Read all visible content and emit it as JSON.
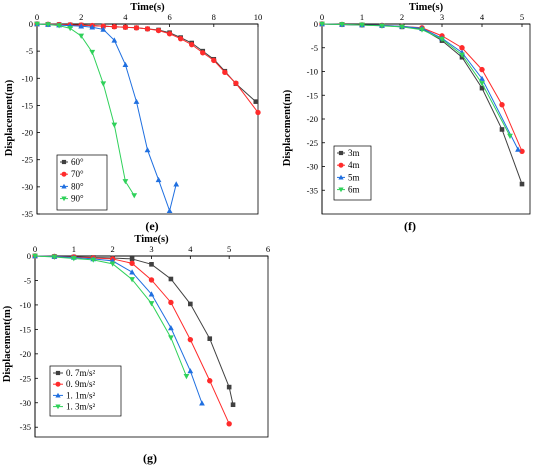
{
  "chart_data": [
    {
      "panel": "(e)",
      "type": "line",
      "xlabel": "Time(s)",
      "ylabel": "Displacement(m)",
      "xlim": [
        0,
        10
      ],
      "ylim": [
        -35,
        0
      ],
      "xticks": [
        0,
        2,
        4,
        6,
        8,
        10
      ],
      "yticks": [
        0,
        -5,
        -10,
        -15,
        -20,
        -25,
        -30,
        -35
      ],
      "legend_position": "lower-left",
      "series": [
        {
          "name": "60°",
          "color": "#404040",
          "marker": "square",
          "x": [
            0,
            0.5,
            1,
            1.5,
            2,
            2.5,
            3,
            3.5,
            4,
            4.5,
            5,
            5.5,
            6,
            6.5,
            7,
            7.5,
            8,
            8.5,
            9,
            9.9
          ],
          "y": [
            0,
            -0.05,
            -0.1,
            -0.15,
            -0.2,
            -0.3,
            -0.4,
            -0.5,
            -0.6,
            -0.7,
            -0.9,
            -1.1,
            -1.6,
            -2.5,
            -3.5,
            -5,
            -6.5,
            -8.7,
            -11,
            -14.3
          ]
        },
        {
          "name": "70°",
          "color": "#ff2b2b",
          "marker": "circle",
          "x": [
            0,
            0.5,
            1,
            1.5,
            2,
            2.5,
            3,
            3.5,
            4,
            4.5,
            5,
            5.5,
            6,
            6.5,
            7,
            7.5,
            8,
            8.5,
            9,
            10
          ],
          "y": [
            0,
            -0.05,
            -0.1,
            -0.15,
            -0.2,
            -0.3,
            -0.4,
            -0.5,
            -0.6,
            -0.7,
            -0.9,
            -1.2,
            -1.8,
            -2.7,
            -3.8,
            -5.3,
            -6.7,
            -8.9,
            -10.9,
            -16.3
          ]
        },
        {
          "name": "80°",
          "color": "#1f6fe0",
          "marker": "triangle-up",
          "x": [
            0,
            0.5,
            1,
            1.5,
            2,
            2.5,
            3,
            3.5,
            4,
            4.5,
            5,
            5.5,
            6,
            6.3
          ],
          "y": [
            0,
            -0.1,
            -0.2,
            -0.3,
            -0.4,
            -0.6,
            -1,
            -3,
            -7.5,
            -14.3,
            -23.2,
            -28.7,
            -34.4,
            -29.5
          ]
        },
        {
          "name": "90°",
          "color": "#2fd15a",
          "marker": "triangle-down",
          "x": [
            0,
            0.5,
            1,
            1.5,
            2,
            2.5,
            3,
            3.5,
            4,
            4.4
          ],
          "y": [
            0,
            -0.1,
            -0.3,
            -0.8,
            -2.2,
            -5.2,
            -11,
            -18.6,
            -29,
            -31.6
          ]
        }
      ]
    },
    {
      "panel": "(f)",
      "type": "line",
      "xlabel": "Time(s)",
      "ylabel": "Displacement(m)",
      "xlim": [
        0,
        5.2
      ],
      "ylim": [
        -40,
        0
      ],
      "xticks": [
        0,
        1,
        2,
        3,
        4,
        5
      ],
      "yticks": [
        0,
        -5,
        -10,
        -15,
        -20,
        -25,
        -30,
        -35
      ],
      "legend_position": "lower-left",
      "series": [
        {
          "name": "3m",
          "color": "#404040",
          "marker": "square",
          "x": [
            0,
            0.5,
            1,
            1.5,
            2,
            2.5,
            3,
            3.5,
            4,
            4.5,
            5
          ],
          "y": [
            0,
            -0.1,
            -0.2,
            -0.3,
            -0.6,
            -1,
            -3.5,
            -7,
            -13.5,
            -22.2,
            -33.7
          ]
        },
        {
          "name": "4m",
          "color": "#ff2b2b",
          "marker": "circle",
          "x": [
            0,
            0.5,
            1,
            1.5,
            2,
            2.5,
            3,
            3.5,
            4,
            4.5,
            5
          ],
          "y": [
            0,
            -0.1,
            -0.2,
            -0.3,
            -0.5,
            -0.8,
            -2.5,
            -5,
            -9.6,
            -17,
            -26.8
          ]
        },
        {
          "name": "5m",
          "color": "#1f6fe0",
          "marker": "triangle-up",
          "x": [
            0,
            0.5,
            1,
            1.5,
            2,
            2.5,
            3,
            3.5,
            4,
            4.9
          ],
          "y": [
            0,
            -0.1,
            -0.2,
            -0.3,
            -0.5,
            -0.9,
            -3,
            -6,
            -11.5,
            -26.4
          ]
        },
        {
          "name": "6m",
          "color": "#2fd15a",
          "marker": "triangle-down",
          "x": [
            0,
            0.5,
            1,
            1.5,
            2,
            2.5,
            3,
            3.5,
            4,
            4.7
          ],
          "y": [
            0,
            -0.1,
            -0.2,
            -0.4,
            -0.6,
            -1.2,
            -3.2,
            -6.5,
            -12.5,
            -23.6
          ]
        }
      ]
    },
    {
      "panel": "(g)",
      "type": "line",
      "xlabel": "Time(s)",
      "ylabel": "Displacement(m)",
      "xlim": [
        0,
        6
      ],
      "ylim": [
        -37,
        0
      ],
      "xticks": [
        0,
        1,
        2,
        3,
        4,
        5,
        6
      ],
      "yticks": [
        0,
        -5,
        -10,
        -15,
        -20,
        -25,
        -30,
        -35
      ],
      "legend_position": "lower-left",
      "series": [
        {
          "name": "0. 7m/s²",
          "color": "#404040",
          "marker": "square",
          "x": [
            0,
            0.5,
            1,
            1.5,
            2,
            2.5,
            3,
            3.5,
            4,
            4.5,
            5,
            5.1
          ],
          "y": [
            0,
            -0.1,
            -0.2,
            -0.3,
            -0.4,
            -0.6,
            -1.7,
            -4.7,
            -9.8,
            -16.9,
            -26.8,
            -30.4
          ]
        },
        {
          "name": "0. 9m/s²",
          "color": "#ff2b2b",
          "marker": "circle",
          "x": [
            0,
            0.5,
            1,
            1.5,
            2,
            2.5,
            3,
            3.5,
            4,
            4.5,
            5
          ],
          "y": [
            0,
            -0.1,
            -0.2,
            -0.4,
            -0.6,
            -1.5,
            -4.9,
            -9.5,
            -17.1,
            -25.5,
            -34.3
          ]
        },
        {
          "name": "1. 1m/s²",
          "color": "#1f6fe0",
          "marker": "triangle-up",
          "x": [
            0,
            0.5,
            1,
            1.5,
            2,
            2.5,
            3,
            3.5,
            4,
            4.3
          ],
          "y": [
            0,
            -0.1,
            -0.3,
            -0.6,
            -1,
            -3.3,
            -7.8,
            -14.7,
            -23.5,
            -30.1
          ]
        },
        {
          "name": "1. 3m/s²",
          "color": "#2fd15a",
          "marker": "triangle-down",
          "x": [
            0,
            0.5,
            1,
            1.5,
            2,
            2.5,
            3,
            3.5,
            3.9
          ],
          "y": [
            0,
            -0.2,
            -0.5,
            -0.8,
            -1.6,
            -4.8,
            -9.7,
            -16.7,
            -24.6
          ]
        }
      ]
    }
  ]
}
